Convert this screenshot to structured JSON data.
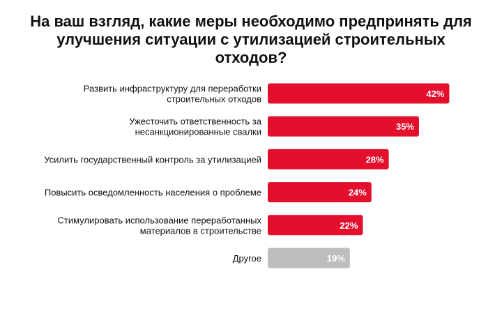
{
  "title_lines": [
    "На ваш взгляд, какие меры необходимо предпринять для",
    "улучшения ситуации с утилизацией строительных",
    "отходов?"
  ],
  "colors": {
    "primary_bar": "#e30f2d",
    "other_bar": "#bdbdbd",
    "value_text": "#ffffff"
  },
  "chart_data": {
    "type": "bar",
    "orientation": "horizontal",
    "title": "На ваш взгляд, какие меры необходимо предпринять для улучшения ситуации с утилизацией строительных отходов?",
    "categories": [
      [
        "Развить инфраструктуру для переработки",
        "строительных отходов"
      ],
      [
        "Ужесточить ответственность за",
        "несанкционированные свалки"
      ],
      [
        "Усилить государственный контроль за утилизацией"
      ],
      [
        "Повысить осведомленность населения о проблеме"
      ],
      [
        "Стимулировать использование переработанных",
        "материалов в строительстве"
      ],
      [
        "Другое"
      ]
    ],
    "values": [
      42,
      35,
      28,
      24,
      22,
      19
    ],
    "value_labels": [
      "42%",
      "35%",
      "28%",
      "24%",
      "22%",
      "19%"
    ],
    "highlight": [
      true,
      true,
      true,
      true,
      true,
      false
    ],
    "unit": "%",
    "grid": false,
    "legend": "none"
  }
}
